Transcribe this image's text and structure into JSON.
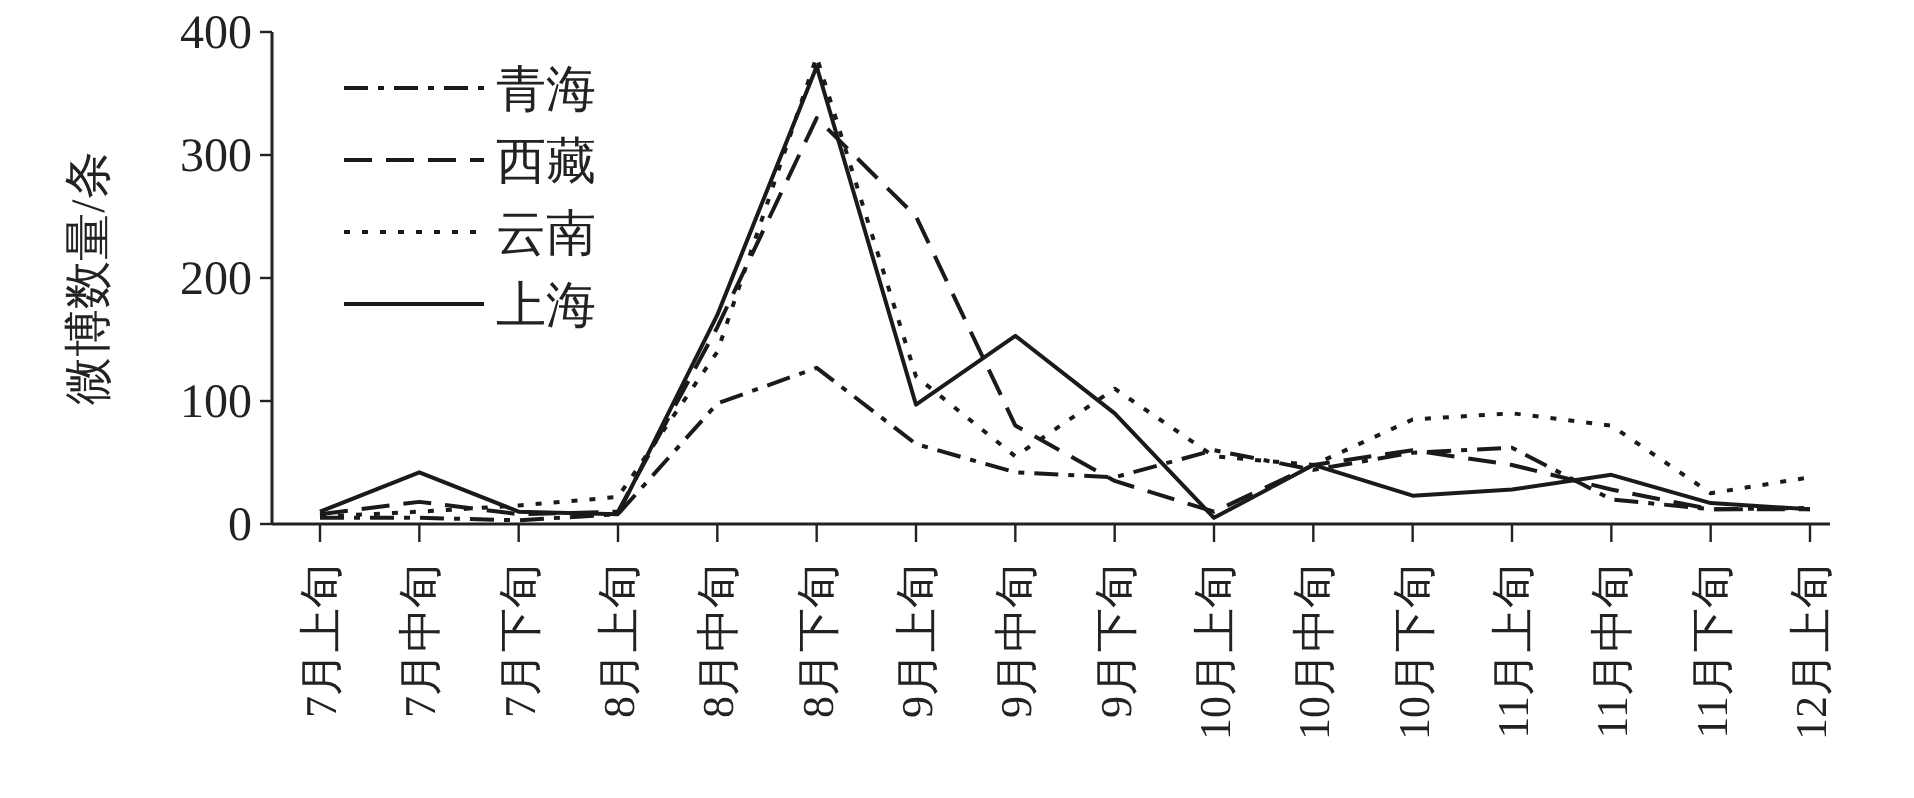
{
  "chart_data": {
    "type": "line",
    "ylabel": "微博数量/条",
    "categories": [
      "7月上旬",
      "7月中旬",
      "7月下旬",
      "8月上旬",
      "8月中旬",
      "8月下旬",
      "9月上旬",
      "9月中旬",
      "9月下旬",
      "10月上旬",
      "10月中旬",
      "10月下旬",
      "11月上旬",
      "11月中旬",
      "11月下旬",
      "12月上旬"
    ],
    "ylim": [
      0,
      400
    ],
    "yticks": [
      0,
      100,
      200,
      300,
      400
    ],
    "grid": false,
    "legend": "top left",
    "marker": "none",
    "series": [
      {
        "name": "青海",
        "color": "#1a1a1a",
        "line_style": "dashdot",
        "values": [
          5,
          5,
          3,
          8,
          98,
          127,
          65,
          42,
          38,
          60,
          44,
          58,
          62,
          20,
          12,
          13
        ]
      },
      {
        "name": "西藏",
        "color": "#1a1a1a",
        "line_style": "dashed",
        "values": [
          8,
          18,
          8,
          10,
          160,
          330,
          250,
          80,
          35,
          10,
          48,
          60,
          48,
          28,
          12,
          12
        ]
      },
      {
        "name": "云南",
        "color": "#1a1a1a",
        "line_style": "dotted",
        "values": [
          6,
          10,
          15,
          22,
          140,
          380,
          120,
          55,
          110,
          55,
          48,
          85,
          90,
          80,
          25,
          38
        ]
      },
      {
        "name": "上海",
        "color": "#1a1a1a",
        "line_style": "solid",
        "values": [
          10,
          42,
          10,
          8,
          170,
          372,
          97,
          153,
          90,
          5,
          48,
          23,
          28,
          40,
          17,
          12
        ]
      }
    ]
  }
}
